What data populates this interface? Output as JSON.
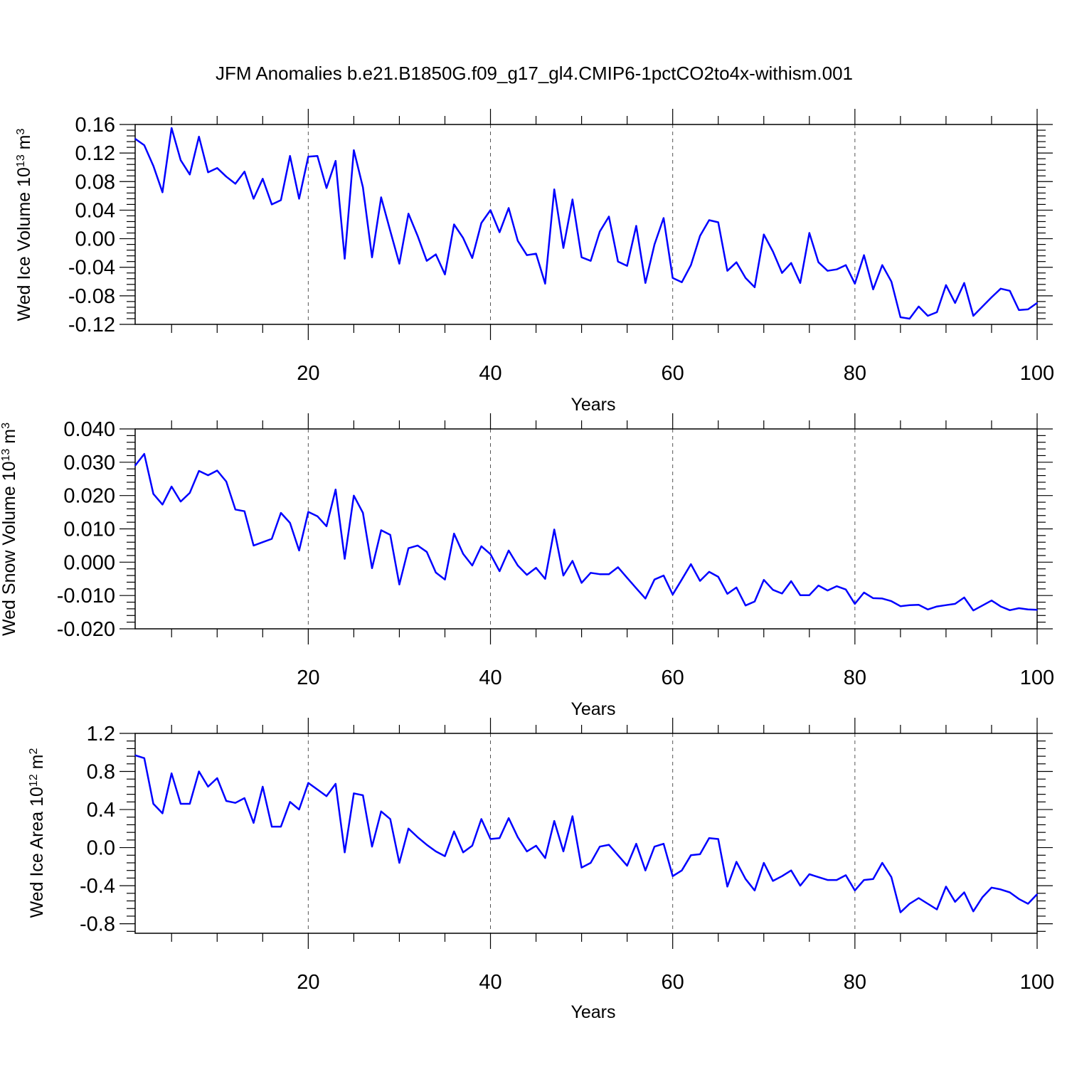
{
  "title": "JFM Anomalies b.e21.B1850G.f09_g17_gl4.CMIP6-1pctCO2to4x-withism.001",
  "colors": {
    "series": "#0000ff",
    "axes": "#000000",
    "grid": "#555555"
  },
  "chart_data": [
    {
      "type": "line",
      "title": "JFM Anomalies b.e21.B1850G.f09_g17_gl4.CMIP6-1pctCO2to4x-withism.001",
      "ylabel": {
        "main": "Wed Ice Volume 10",
        "exponent": "13",
        "unit": " m",
        "unit_exponent": "3"
      },
      "xlabel": "Years",
      "xlim": [
        1,
        100
      ],
      "ylim": [
        -0.12,
        0.16
      ],
      "yticks": [
        "0.16",
        "0.12",
        "0.08",
        "0.04",
        "0.00",
        "-0.04",
        "-0.08",
        "-0.12"
      ],
      "xticks": [
        "20",
        "40",
        "60",
        "80",
        "100"
      ],
      "grid": "vertical dashed at x ticks",
      "series": [
        {
          "name": "Wed Ice Volume",
          "x_start": 1,
          "values": [
            0.14,
            0.131,
            0.102,
            0.065,
            0.155,
            0.11,
            0.09,
            0.143,
            0.093,
            0.099,
            0.087,
            0.077,
            0.094,
            0.056,
            0.084,
            0.048,
            0.054,
            0.116,
            0.056,
            0.115,
            0.116,
            0.071,
            0.109,
            -0.028,
            0.124,
            0.072,
            -0.026,
            0.058,
            0.011,
            -0.035,
            0.035,
            0.004,
            -0.031,
            -0.022,
            -0.05,
            0.02,
            0.001,
            -0.027,
            0.022,
            0.04,
            0.009,
            0.043,
            -0.003,
            -0.023,
            -0.021,
            -0.063,
            0.069,
            -0.013,
            0.055,
            -0.026,
            -0.031,
            0.01,
            0.031,
            -0.032,
            -0.038,
            0.018,
            -0.062,
            -0.008,
            0.029,
            -0.055,
            -0.061,
            -0.037,
            0.004,
            0.026,
            0.023,
            -0.045,
            -0.033,
            -0.055,
            -0.068,
            0.006,
            -0.018,
            -0.048,
            -0.034,
            -0.062,
            0.008,
            -0.033,
            -0.045,
            -0.043,
            -0.037,
            -0.063,
            -0.023,
            -0.071,
            -0.037,
            -0.06,
            -0.11,
            -0.112,
            -0.095,
            -0.108,
            -0.103,
            -0.065,
            -0.09,
            -0.062,
            -0.108,
            -0.095,
            -0.082,
            -0.07,
            -0.073,
            -0.1,
            -0.099,
            -0.09
          ]
        }
      ]
    },
    {
      "type": "line",
      "ylabel": {
        "main": "Wed Snow Volume 10",
        "exponent": "13",
        "unit": " m",
        "unit_exponent": "3"
      },
      "xlabel": "Years",
      "xlim": [
        1,
        100
      ],
      "ylim": [
        -0.02,
        0.04
      ],
      "yticks": [
        "0.040",
        "0.030",
        "0.020",
        "0.010",
        "0.000",
        "-0.010",
        "-0.020"
      ],
      "xticks": [
        "20",
        "40",
        "60",
        "80",
        "100"
      ],
      "grid": "vertical dashed at x ticks",
      "series": [
        {
          "name": "Wed Snow Volume",
          "x_start": 1,
          "values": [
            0.029,
            0.0325,
            0.0205,
            0.0173,
            0.0227,
            0.0182,
            0.0208,
            0.0274,
            0.0261,
            0.0275,
            0.0242,
            0.0158,
            0.0153,
            0.005,
            0.006,
            0.007,
            0.0148,
            0.0118,
            0.0035,
            0.0151,
            0.0138,
            0.0108,
            0.0218,
            0.001,
            0.02,
            0.0148,
            -0.0018,
            0.0096,
            0.0082,
            -0.0067,
            0.0042,
            0.005,
            0.0031,
            -0.0031,
            -0.0052,
            0.0086,
            0.0025,
            -0.001,
            0.0048,
            0.0024,
            -0.0027,
            0.0035,
            -0.001,
            -0.0038,
            -0.0017,
            -0.005,
            0.0098,
            -0.004,
            0.0004,
            -0.0062,
            -0.0032,
            -0.0036,
            -0.0036,
            -0.0015,
            -0.0047,
            -0.0078,
            -0.0109,
            -0.0052,
            -0.004,
            -0.0097,
            -0.0052,
            -0.0006,
            -0.0056,
            -0.0029,
            -0.0044,
            -0.0095,
            -0.0076,
            -0.013,
            -0.0118,
            -0.0053,
            -0.0083,
            -0.0094,
            -0.0057,
            -0.0099,
            -0.0099,
            -0.007,
            -0.0085,
            -0.0072,
            -0.0082,
            -0.0125,
            -0.0091,
            -0.0108,
            -0.0109,
            -0.0117,
            -0.0132,
            -0.0129,
            -0.0128,
            -0.0142,
            -0.0133,
            -0.0129,
            -0.0125,
            -0.0106,
            -0.0145,
            -0.013,
            -0.0115,
            -0.0133,
            -0.0144,
            -0.0138,
            -0.0142,
            -0.0143
          ]
        }
      ]
    },
    {
      "type": "line",
      "ylabel": {
        "main": "Wed Ice Area 10",
        "exponent": "12",
        "unit": " m",
        "unit_exponent": "2"
      },
      "xlabel": "Years",
      "xlim": [
        1,
        100
      ],
      "ylim": [
        -0.9,
        1.2
      ],
      "yticks": [
        "1.2",
        "0.8",
        "0.4",
        "0.0",
        "-0.4",
        "-0.8"
      ],
      "xticks": [
        "20",
        "40",
        "60",
        "80",
        "100"
      ],
      "grid": "vertical dashed at x ticks",
      "series": [
        {
          "name": "Wed Ice Area",
          "x_start": 1,
          "values": [
            0.97,
            0.94,
            0.46,
            0.36,
            0.78,
            0.46,
            0.46,
            0.8,
            0.64,
            0.73,
            0.49,
            0.47,
            0.52,
            0.26,
            0.64,
            0.22,
            0.22,
            0.48,
            0.4,
            0.68,
            0.61,
            0.54,
            0.67,
            -0.05,
            0.57,
            0.55,
            0.01,
            0.38,
            0.3,
            -0.16,
            0.2,
            0.11,
            0.03,
            -0.04,
            -0.09,
            0.17,
            -0.05,
            0.02,
            0.3,
            0.09,
            0.1,
            0.31,
            0.11,
            -0.04,
            0.02,
            -0.11,
            0.28,
            -0.04,
            0.33,
            -0.21,
            -0.16,
            0.01,
            0.03,
            -0.08,
            -0.19,
            0.04,
            -0.24,
            0.01,
            0.04,
            -0.3,
            -0.24,
            -0.08,
            -0.07,
            0.1,
            0.09,
            -0.41,
            -0.15,
            -0.33,
            -0.45,
            -0.16,
            -0.35,
            -0.3,
            -0.24,
            -0.4,
            -0.28,
            -0.31,
            -0.34,
            -0.34,
            -0.29,
            -0.45,
            -0.34,
            -0.33,
            -0.16,
            -0.31,
            -0.68,
            -0.59,
            -0.53,
            -0.59,
            -0.65,
            -0.41,
            -0.57,
            -0.47,
            -0.67,
            -0.52,
            -0.42,
            -0.44,
            -0.47,
            -0.54,
            -0.59,
            -0.49
          ]
        }
      ]
    }
  ]
}
